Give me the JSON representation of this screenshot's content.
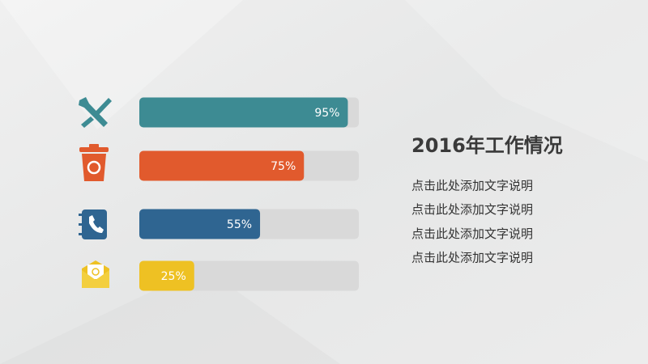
{
  "chart_data": {
    "type": "progress",
    "title": "2016年工作情况",
    "notes": [
      "点击此处添加文字说明",
      "点击此处添加文字说明",
      "点击此处添加文字说明",
      "点击此处添加文字说明"
    ],
    "values": [
      95,
      75,
      55,
      25
    ],
    "value_labels": [
      "95%",
      "75%",
      "55%",
      "25%"
    ],
    "colors": [
      "#3d8b93",
      "#e15a2d",
      "#2f6591",
      "#eec123"
    ],
    "track_color": "#d9d9d9",
    "xlim": [
      0,
      100
    ]
  }
}
